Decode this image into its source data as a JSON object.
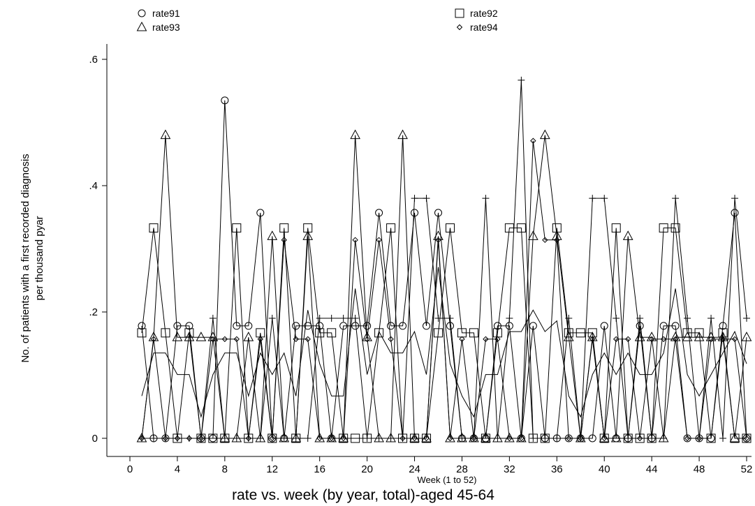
{
  "chart_data": {
    "type": "line",
    "title": "rate vs. week (by year, total)-aged 45-64",
    "xlabel": "Week (1 to 52)",
    "ylabel": [
      "No. of patients with a first recorded diagnosis",
      "per thousand pyar"
    ],
    "xlim": [
      -1,
      53
    ],
    "ylim": [
      -0.03,
      0.64
    ],
    "xticks": [
      0,
      4,
      8,
      12,
      16,
      20,
      24,
      28,
      32,
      36,
      40,
      44,
      48,
      52
    ],
    "yticks": [
      0,
      0.2,
      0.4,
      0.6
    ],
    "ytick_labels": [
      "0",
      ".2",
      ".4",
      ".6"
    ],
    "x": [
      1,
      2,
      3,
      4,
      5,
      6,
      7,
      8,
      9,
      10,
      11,
      12,
      13,
      14,
      15,
      16,
      17,
      18,
      19,
      20,
      21,
      22,
      23,
      24,
      25,
      26,
      27,
      28,
      29,
      30,
      31,
      32,
      33,
      34,
      35,
      36,
      37,
      38,
      39,
      40,
      41,
      42,
      43,
      44,
      45,
      46,
      47,
      48,
      49,
      50,
      51,
      52
    ],
    "legend_position": "top",
    "series": [
      {
        "name": "rate91",
        "marker": "circle",
        "values": [
          0.178,
          0,
          0,
          0.178,
          0.178,
          0,
          0,
          0.535,
          0.178,
          0.178,
          0.357,
          0,
          0,
          0.178,
          0.178,
          0.178,
          0,
          0.178,
          0.178,
          0.178,
          0.357,
          0.178,
          0.178,
          0.357,
          0.178,
          0.357,
          0.178,
          0,
          0,
          0,
          0.178,
          0.178,
          0,
          0.178,
          0,
          0,
          0,
          0,
          0,
          0.178,
          0,
          0,
          0.178,
          0,
          0.178,
          0.178,
          0,
          0,
          0,
          0.178,
          0.357,
          0
        ]
      },
      {
        "name": "rate92",
        "marker": "square",
        "values": [
          0.167,
          0.333,
          0.167,
          0,
          0.167,
          0,
          0,
          0,
          0.333,
          0,
          0.167,
          0,
          0.333,
          0,
          0.333,
          0.167,
          0.167,
          0,
          0,
          0,
          0.167,
          0.333,
          0,
          0,
          0,
          0.167,
          0.333,
          0.167,
          0.167,
          0,
          0.167,
          0.333,
          0.333,
          0,
          0,
          0.333,
          0.167,
          0.167,
          0.167,
          0,
          0.333,
          0,
          0,
          0,
          0.333,
          0.333,
          0.167,
          0.167,
          0,
          0.167,
          0,
          0
        ]
      },
      {
        "name": "rate93",
        "marker": "triangle",
        "values": [
          0,
          0.16,
          0.48,
          0.16,
          0.16,
          0.16,
          0.16,
          0,
          0,
          0.16,
          0,
          0.32,
          0,
          0,
          0.32,
          0,
          0,
          0,
          0.48,
          0.16,
          0,
          0,
          0.48,
          0,
          0,
          0.32,
          0,
          0,
          0,
          0,
          0,
          0,
          0,
          0.32,
          0.48,
          0.32,
          0.16,
          0,
          0.16,
          0,
          0,
          0.32,
          0.16,
          0.16,
          0,
          0.16,
          0.16,
          0.16,
          0.16,
          0.16,
          0,
          0.16
        ]
      },
      {
        "name": "rate94",
        "marker": "diamond",
        "values": [
          0,
          0.157,
          0,
          0,
          0,
          0,
          0.157,
          0.157,
          0.157,
          0,
          0.157,
          0,
          0.314,
          0.157,
          0.157,
          0,
          0,
          0,
          0.314,
          0.157,
          0.314,
          0.157,
          0,
          0,
          0,
          0.314,
          0,
          0.157,
          0,
          0.157,
          0.157,
          0,
          0,
          0.471,
          0.314,
          0.314,
          0,
          0,
          0.157,
          0,
          0.157,
          0.157,
          0,
          0.157,
          0.157,
          0.157,
          0,
          0,
          0.157,
          0.157,
          0.157,
          0
        ]
      },
      {
        "name": "",
        "marker": "plus",
        "values": [
          0,
          0,
          0,
          0,
          0,
          0,
          0.19,
          0,
          0,
          0,
          0,
          0.19,
          0,
          0,
          0,
          0.19,
          0.19,
          0.19,
          0.19,
          0,
          0,
          0,
          0,
          0.38,
          0.38,
          0.19,
          0.19,
          0,
          0,
          0.38,
          0,
          0.19,
          0.567,
          0,
          0,
          0,
          0.19,
          0,
          0.38,
          0.38,
          0.19,
          0,
          0.19,
          0,
          0,
          0.38,
          0.19,
          0,
          0.19,
          0,
          0.38,
          0.19
        ]
      },
      {
        "name": "",
        "marker": "none",
        "values": [
          0.067,
          0.135,
          0.135,
          0.101,
          0.101,
          0.034,
          0.101,
          0.135,
          0.135,
          0.067,
          0.135,
          0.101,
          0.135,
          0.067,
          0.203,
          0.118,
          0.067,
          0.067,
          0.237,
          0.101,
          0.169,
          0.135,
          0.135,
          0.169,
          0.101,
          0.271,
          0.118,
          0.067,
          0.034,
          0.101,
          0.101,
          0.169,
          0.169,
          0.203,
          0.169,
          0.186,
          0.067,
          0.034,
          0.101,
          0.135,
          0.101,
          0.135,
          0.101,
          0.101,
          0.135,
          0.237,
          0.101,
          0.067,
          0.101,
          0.135,
          0.169,
          0.118
        ]
      }
    ],
    "legend": [
      {
        "label": "rate91",
        "marker": "circle"
      },
      {
        "label": "rate92",
        "marker": "square"
      },
      {
        "label": "rate93",
        "marker": "triangle"
      },
      {
        "label": "rate94",
        "marker": "diamond"
      }
    ]
  }
}
